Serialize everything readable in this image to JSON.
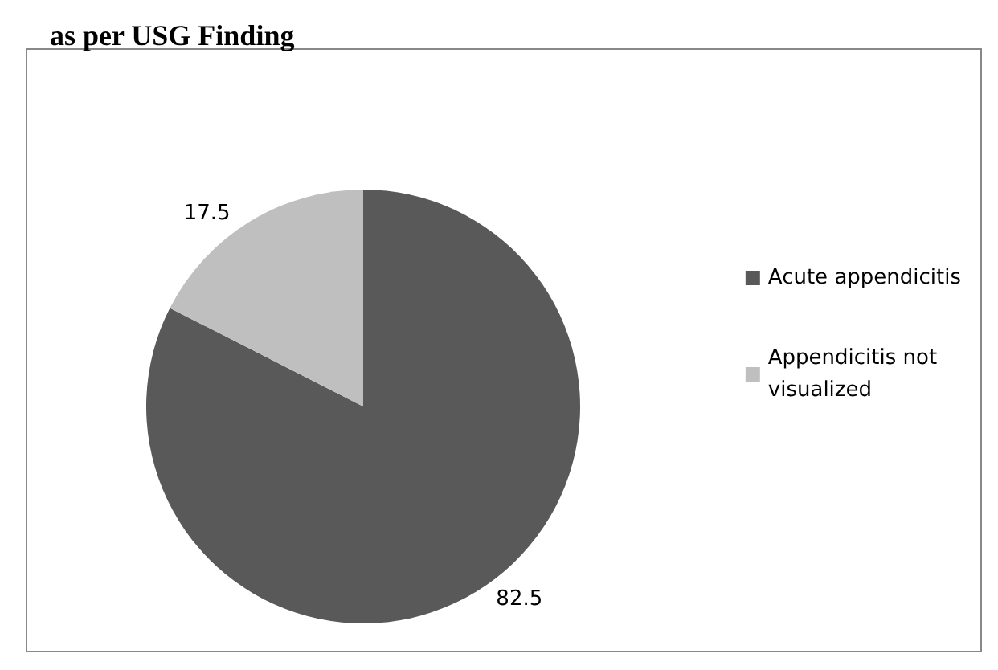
{
  "chart_data": {
    "type": "pie",
    "title": "as per USG Finding",
    "categories": [
      "Acute appendicitis",
      "Appendicitis not visualized"
    ],
    "values": [
      82.5,
      17.5
    ],
    "colors": [
      "#595959",
      "#bfbfbf"
    ],
    "data_labels": true,
    "legend": "right"
  }
}
